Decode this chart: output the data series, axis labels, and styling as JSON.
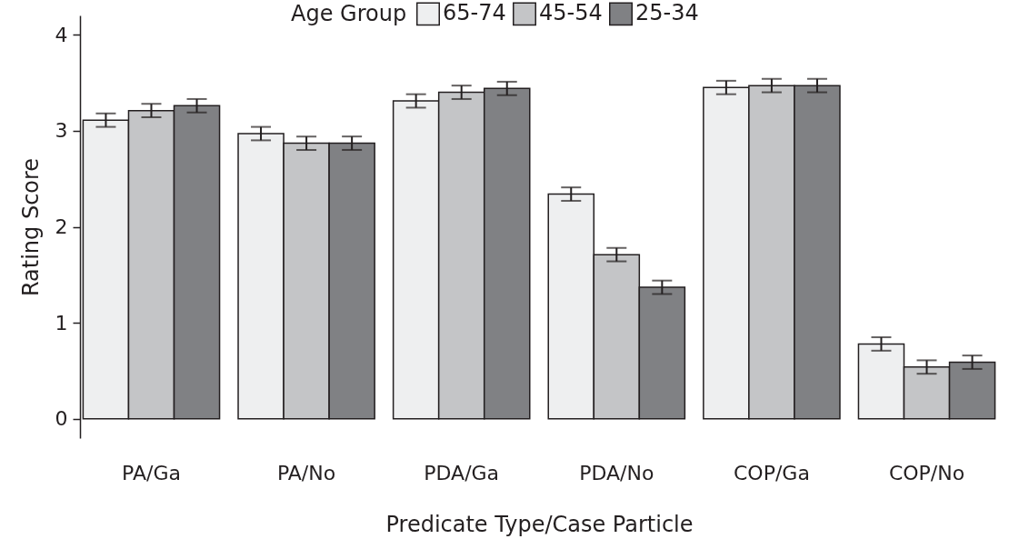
{
  "chart_data": {
    "type": "bar",
    "xlabel": "Predicate Type/Case Particle",
    "ylabel": "Rating Score",
    "legend_title": "Age Group",
    "legend": "top",
    "categories": [
      "PA/Ga",
      "PA/No",
      "PDA/Ga",
      "PDA/No",
      "COP/Ga",
      "COP/No"
    ],
    "ylim": [
      -0.2,
      4.2
    ],
    "yticks": [
      0,
      1,
      2,
      3,
      4
    ],
    "series": [
      {
        "name": "65-74",
        "color": "#eeeff0",
        "values": [
          3.11,
          2.97,
          3.31,
          2.34,
          3.45,
          0.78
        ],
        "errors": [
          0.07,
          0.07,
          0.07,
          0.07,
          0.07,
          0.07
        ]
      },
      {
        "name": "45-54",
        "color": "#c4c5c7",
        "values": [
          3.21,
          2.87,
          3.4,
          1.71,
          3.47,
          0.54
        ],
        "errors": [
          0.07,
          0.07,
          0.07,
          0.07,
          0.07,
          0.07
        ]
      },
      {
        "name": "25-34",
        "color": "#808184",
        "values": [
          3.26,
          2.87,
          3.44,
          1.37,
          3.47,
          0.59
        ],
        "errors": [
          0.07,
          0.07,
          0.07,
          0.07,
          0.07,
          0.07
        ]
      }
    ]
  }
}
